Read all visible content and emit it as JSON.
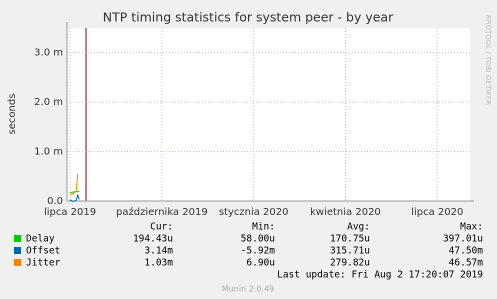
{
  "chart_data": {
    "type": "line",
    "title": "NTP timing statistics for system peer - by year",
    "y_label": "seconds",
    "side_label": "RRDTOOL / TOBI OETIKER",
    "xlim": [
      -0.1,
      13.07
    ],
    "xticks": [
      {
        "value": 0,
        "label": "lipca 2019"
      },
      {
        "value": 3,
        "label": "października 2019"
      },
      {
        "value": 6,
        "label": "stycznia 2020"
      },
      {
        "value": 9,
        "label": "kwietnia 2020"
      },
      {
        "value": 12,
        "label": "lipca 2020"
      }
    ],
    "ylim": [
      0,
      0.0035
    ],
    "yticks": [
      {
        "value": 0,
        "label": "0.0"
      },
      {
        "value": 0.001,
        "label": "1.0 m"
      },
      {
        "value": 0.002,
        "label": "2.0 m"
      },
      {
        "value": 0.003,
        "label": "3.0 m"
      }
    ],
    "grid": true,
    "x": [
      0.0,
      0.1,
      0.2,
      0.25,
      0.3
    ],
    "series": [
      {
        "name": "Delay",
        "color": "#00cc00",
        "values": [
          0.00017,
          0.00018,
          0.00019,
          0.00019,
          0.00019
        ]
      },
      {
        "name": "Offset",
        "color": "#0066b3",
        "values": [
          2e-05,
          -1e-05,
          1e-05,
          0.00012,
          3e-05
        ]
      },
      {
        "name": "Jitter",
        "color": "#ff8000",
        "values": [
          0.00012,
          0.00015,
          0.0002,
          0.00055,
          null
        ]
      }
    ],
    "stats": {
      "headers": [
        "Cur:",
        "Min:",
        "Avg:",
        "Max:"
      ],
      "rows": [
        [
          "194.43u",
          "58.00u",
          "170.75u",
          "397.01u"
        ],
        [
          "3.14m",
          "-5.92m",
          "315.71u",
          "47.50m"
        ],
        [
          "1.03m",
          "6.90u",
          "279.82u",
          "46.57m"
        ]
      ]
    },
    "last_update": "Last update: Fri Aug  2 17:20:07 2019",
    "footer": "Munin 2.0.49"
  }
}
